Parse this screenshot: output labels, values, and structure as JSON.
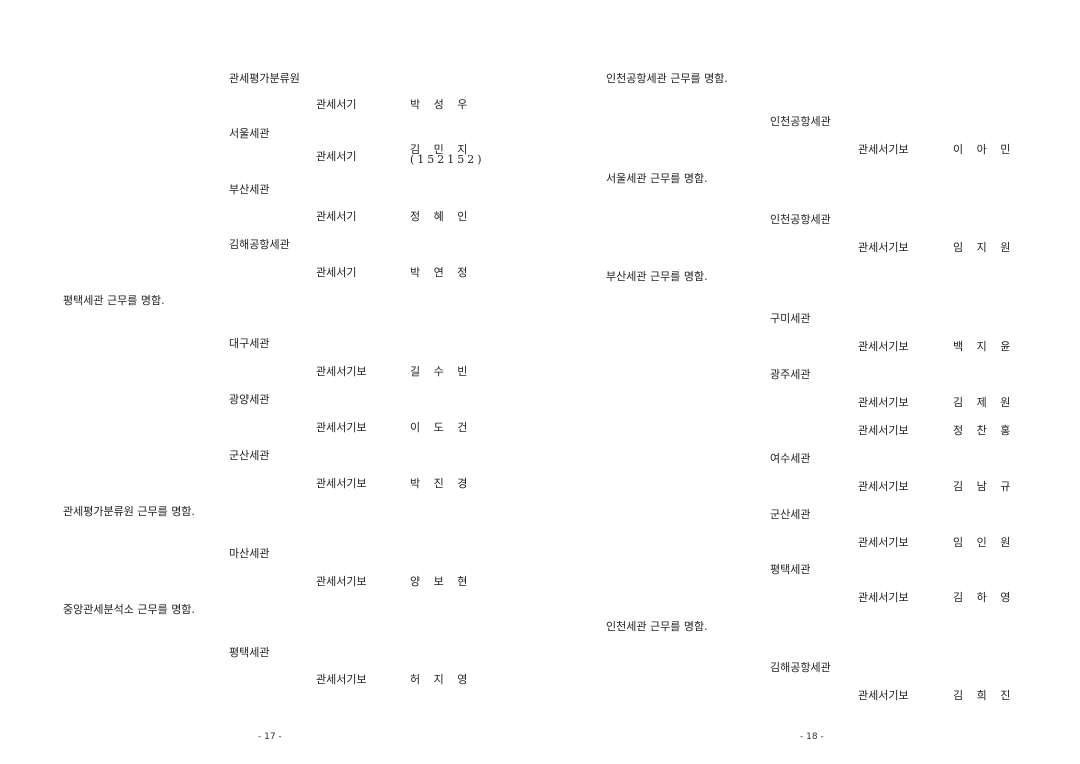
{
  "pages": [
    {
      "page_number": "- 17 -",
      "items": [
        {
          "type": "office",
          "text": "관세평가분류원"
        },
        {
          "type": "person",
          "rank": "관세서기",
          "name": "박 성 우"
        },
        {
          "type": "office",
          "text": "서울세관"
        },
        {
          "type": "person",
          "rank": "관세서기",
          "name": "김 민 지",
          "note": "(152152)"
        },
        {
          "type": "office",
          "text": "부산세관"
        },
        {
          "type": "person",
          "rank": "관세서기",
          "name": "정 혜 인"
        },
        {
          "type": "office",
          "text": "김해공항세관"
        },
        {
          "type": "person",
          "rank": "관세서기",
          "name": "박 연 정"
        },
        {
          "type": "heading",
          "text": "평택세관 근무를 명함."
        },
        {
          "type": "office",
          "text": "대구세관"
        },
        {
          "type": "person",
          "rank": "관세서기보",
          "name": "길 수 빈"
        },
        {
          "type": "office",
          "text": "광양세관"
        },
        {
          "type": "person",
          "rank": "관세서기보",
          "name": "이 도 건"
        },
        {
          "type": "office",
          "text": "군산세관"
        },
        {
          "type": "person",
          "rank": "관세서기보",
          "name": "박 진 경"
        },
        {
          "type": "heading",
          "text": "관세평가분류원 근무를 명함."
        },
        {
          "type": "office",
          "text": "마산세관"
        },
        {
          "type": "person",
          "rank": "관세서기보",
          "name": "양 보 현"
        },
        {
          "type": "heading",
          "text": "중앙관세분석소 근무를 명함."
        },
        {
          "type": "office",
          "text": "평택세관"
        },
        {
          "type": "person",
          "rank": "관세서기보",
          "name": "허 지 영"
        }
      ]
    },
    {
      "page_number": "- 18 -",
      "items": [
        {
          "type": "heading",
          "text": "인천공항세관 근무를 명함."
        },
        {
          "type": "office",
          "text": "인천공항세관"
        },
        {
          "type": "person",
          "rank": "관세서기보",
          "name": "이 아 민"
        },
        {
          "type": "heading",
          "text": "서울세관 근무를 명함."
        },
        {
          "type": "office",
          "text": "인천공항세관"
        },
        {
          "type": "person",
          "rank": "관세서기보",
          "name": "임 지 원"
        },
        {
          "type": "heading",
          "text": "부산세관 근무를 명함."
        },
        {
          "type": "office",
          "text": "구미세관"
        },
        {
          "type": "person",
          "rank": "관세서기보",
          "name": "백 지 윤"
        },
        {
          "type": "office",
          "text": "광주세관"
        },
        {
          "type": "person",
          "rank": "관세서기보",
          "name": "김 제 원"
        },
        {
          "type": "person",
          "rank": "관세서기보",
          "name": "정 찬 홍"
        },
        {
          "type": "office",
          "text": "여수세관"
        },
        {
          "type": "person",
          "rank": "관세서기보",
          "name": "김 남 규"
        },
        {
          "type": "office",
          "text": "군산세관"
        },
        {
          "type": "person",
          "rank": "관세서기보",
          "name": "임 인 원"
        },
        {
          "type": "office",
          "text": "평택세관"
        },
        {
          "type": "person",
          "rank": "관세서기보",
          "name": "김 하 영"
        },
        {
          "type": "heading",
          "text": "인천세관 근무를 명함."
        },
        {
          "type": "office",
          "text": "김해공항세관"
        },
        {
          "type": "person",
          "rank": "관세서기보",
          "name": "김 희 진"
        }
      ]
    }
  ]
}
